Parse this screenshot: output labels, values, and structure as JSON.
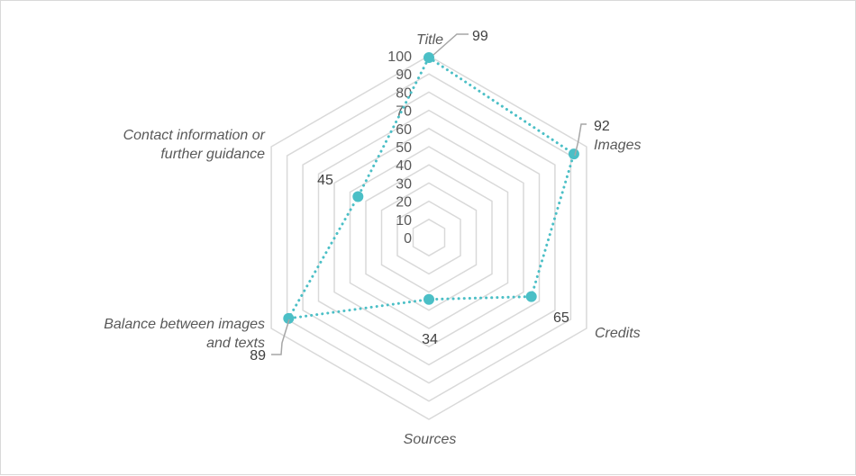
{
  "chart_data": {
    "type": "radar",
    "title": "",
    "categories": [
      "Title",
      "Images",
      "Credits",
      "Sources",
      "Balance between images and texts",
      "Contact information or further guidance"
    ],
    "category_lines": [
      [
        "Title"
      ],
      [
        "Images"
      ],
      [
        "Credits"
      ],
      [
        "Sources"
      ],
      [
        "Balance between images",
        "and texts"
      ],
      [
        "Contact information or",
        "further guidance"
      ]
    ],
    "series": [
      {
        "values": [
          99,
          92,
          65,
          34,
          89,
          45
        ]
      }
    ],
    "data_labels": [
      "99",
      "92",
      "65",
      "34",
      "89",
      "45"
    ],
    "rlim": [
      0,
      100
    ],
    "ticks": [
      "0",
      "10",
      "20",
      "30",
      "40",
      "50",
      "60",
      "70",
      "80",
      "90",
      "100"
    ],
    "tick_values": [
      0,
      10,
      20,
      30,
      40,
      50,
      60,
      70,
      80,
      90,
      100
    ],
    "grid": true,
    "legend": "none",
    "colors": {
      "series": "#4bbfc6",
      "grid": "#d9d9d9",
      "text": "#595959",
      "leader": "#a6a6a6"
    }
  }
}
